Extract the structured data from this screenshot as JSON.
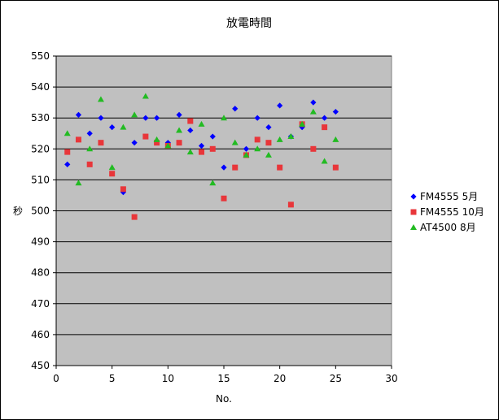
{
  "chart_data": {
    "type": "scatter",
    "title": "放電時間",
    "xlabel": "No.",
    "ylabel": "秒",
    "xlim": [
      0,
      30
    ],
    "ylim": [
      450,
      550
    ],
    "xticks": [
      0,
      5,
      10,
      15,
      20,
      25,
      30
    ],
    "yticks": [
      450,
      460,
      470,
      480,
      490,
      500,
      510,
      520,
      530,
      540,
      550
    ],
    "grid": "horizontal",
    "legend_position": "right",
    "plot_background": "#c0c0c0",
    "series": [
      {
        "name": "FM4555 5月",
        "marker": "diamond",
        "color": "#0000ff",
        "x": [
          1,
          2,
          3,
          4,
          5,
          6,
          7,
          8,
          9,
          10,
          11,
          12,
          13,
          14,
          15,
          16,
          17,
          18,
          19,
          20,
          21,
          22,
          23,
          24,
          25
        ],
        "y": [
          515,
          531,
          525,
          530,
          527,
          506,
          522,
          530,
          530,
          522,
          531,
          526,
          521,
          524,
          514,
          533,
          520,
          530,
          527,
          534,
          524,
          527,
          535,
          530,
          532
        ]
      },
      {
        "name": "FM4555 10月",
        "marker": "square",
        "color": "#e8363a",
        "x": [
          1,
          2,
          3,
          4,
          5,
          6,
          7,
          8,
          9,
          10,
          11,
          12,
          13,
          14,
          15,
          16,
          17,
          18,
          19,
          20,
          21,
          22,
          23,
          24,
          25
        ],
        "y": [
          519,
          523,
          515,
          522,
          512,
          507,
          498,
          524,
          522,
          521,
          522,
          529,
          519,
          520,
          504,
          514,
          518,
          523,
          522,
          514,
          502,
          528,
          520,
          527,
          514
        ]
      },
      {
        "name": "AT4500 8月",
        "marker": "triangle",
        "color": "#22bb22",
        "x": [
          1,
          2,
          3,
          4,
          5,
          6,
          7,
          8,
          9,
          10,
          11,
          12,
          13,
          14,
          15,
          16,
          17,
          18,
          19,
          20,
          21,
          22,
          23,
          24,
          25
        ],
        "y": [
          525,
          509,
          520,
          536,
          514,
          527,
          531,
          537,
          523,
          521,
          526,
          519,
          528,
          509,
          530,
          522,
          518,
          520,
          518,
          523,
          524,
          528,
          532,
          516,
          523
        ]
      }
    ]
  }
}
